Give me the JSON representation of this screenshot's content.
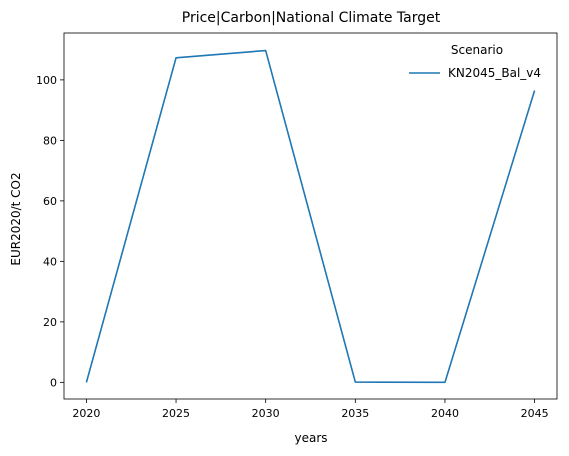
{
  "chart_data": {
    "type": "line",
    "title": "Price|Carbon|National Climate Target",
    "xlabel": "years",
    "ylabel": "EUR2020/t CO2",
    "x": [
      2020,
      2025,
      2030,
      2035,
      2040,
      2045
    ],
    "xlim": [
      2018.75,
      2046.25
    ],
    "ylim": [
      -5.5,
      115.5
    ],
    "xticks": [
      2020,
      2025,
      2030,
      2035,
      2040,
      2045
    ],
    "yticks": [
      0,
      20,
      40,
      60,
      80,
      100
    ],
    "grid": false,
    "legend": {
      "title": "Scenario",
      "position": "top-right"
    },
    "series": [
      {
        "name": "KN2045_Bal_v4",
        "color": "#1f77b4",
        "values": [
          0,
          107.3,
          109.7,
          0.1,
          0,
          96.5
        ]
      }
    ]
  }
}
